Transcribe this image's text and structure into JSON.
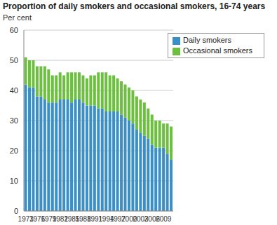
{
  "chart_data": {
    "type": "bar",
    "title": "Proportion of daily smokers and occasional smokers, 16-74 years",
    "y_label": "Per cent",
    "categories": [
      "1973",
      null,
      null,
      "1976",
      null,
      null,
      "1979",
      null,
      null,
      "1982",
      null,
      null,
      "1985",
      null,
      null,
      "1988",
      null,
      null,
      "1991",
      null,
      null,
      "1994",
      null,
      null,
      "1997",
      null,
      null,
      "2000",
      null,
      null,
      "2003",
      null,
      null,
      "2006",
      null,
      null,
      "2009",
      null,
      null
    ],
    "series": [
      {
        "name": "Daily smokers",
        "color": "#3a8fc7",
        "values": [
          42,
          41,
          41,
          38,
          38,
          37,
          36,
          36,
          36,
          37,
          37,
          37,
          36,
          37,
          37,
          36,
          35,
          35,
          35,
          34,
          34,
          33,
          33,
          33,
          33,
          32,
          31,
          30,
          29,
          27,
          26,
          25,
          24,
          22,
          21,
          21,
          21,
          19,
          17
        ]
      },
      {
        "name": "Occasional smokers",
        "color": "#6dbf3f",
        "values": [
          9,
          9,
          9,
          10,
          10,
          11,
          11,
          9,
          9,
          9,
          8,
          9,
          10,
          9,
          9,
          9,
          9,
          10,
          10,
          12,
          12,
          13,
          12,
          12,
          11,
          11,
          11,
          11,
          11,
          11,
          11,
          11,
          10,
          10,
          9,
          9,
          8,
          10,
          11
        ]
      }
    ],
    "stacked": true,
    "ylim": [
      0,
      60
    ],
    "yticks": [
      0,
      10,
      20,
      30,
      40,
      50,
      60
    ],
    "grid": true,
    "legend": "top-right"
  }
}
